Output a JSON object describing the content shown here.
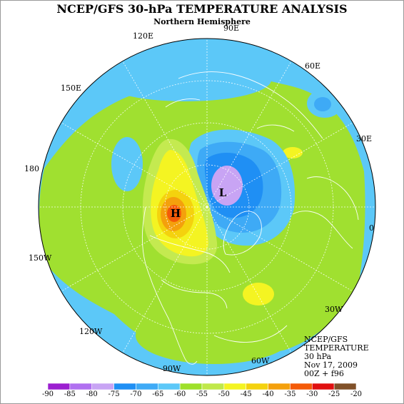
{
  "title": "NCEP/GFS 30-hPa TEMPERATURE ANALYSIS",
  "subtitle": "Northern Hemisphere",
  "longitude_labels": [
    {
      "text": "90E"
    },
    {
      "text": "120E"
    },
    {
      "text": "60E"
    },
    {
      "text": "150E"
    },
    {
      "text": "30E"
    },
    {
      "text": "180"
    },
    {
      "text": "0"
    },
    {
      "text": "150W"
    },
    {
      "text": "30W"
    },
    {
      "text": "120W"
    },
    {
      "text": "60W"
    },
    {
      "text": "90W"
    }
  ],
  "centers": [
    {
      "label": "H",
      "kind": "high"
    },
    {
      "label": "L",
      "kind": "low"
    }
  ],
  "info_lines": [
    "NCEP/GFS",
    "TEMPERATURE",
    "30 hPa",
    "Nov 17, 2009",
    "00Z + f96"
  ],
  "colorbar": {
    "labels": [
      "-90",
      "-85",
      "-80",
      "-75",
      "-70",
      "-65",
      "-60",
      "-55",
      "-50",
      "-45",
      "-40",
      "-35",
      "-30",
      "-25",
      "-20"
    ],
    "colors": [
      "#9b1fd0",
      "#b070f0",
      "#c8a4f4",
      "#1f8ff4",
      "#3eaaf6",
      "#5cc8f8",
      "#9ee02a",
      "#c0e84a",
      "#f4f422",
      "#f4d20e",
      "#f4a00c",
      "#f45a08",
      "#e01010",
      "#805028",
      "#9a9a9a"
    ]
  },
  "palette": {
    "ocean_bg": "#5cc8f8",
    "green": "#a0e030",
    "light_green": "#c4ea50",
    "yellow": "#f4f422",
    "gold": "#f4d20e",
    "orange": "#f4a00c",
    "red_orange": "#f45a08",
    "blue": "#1f8ff4",
    "mid_blue": "#3eaaf6",
    "lavender": "#c8a4f4"
  }
}
